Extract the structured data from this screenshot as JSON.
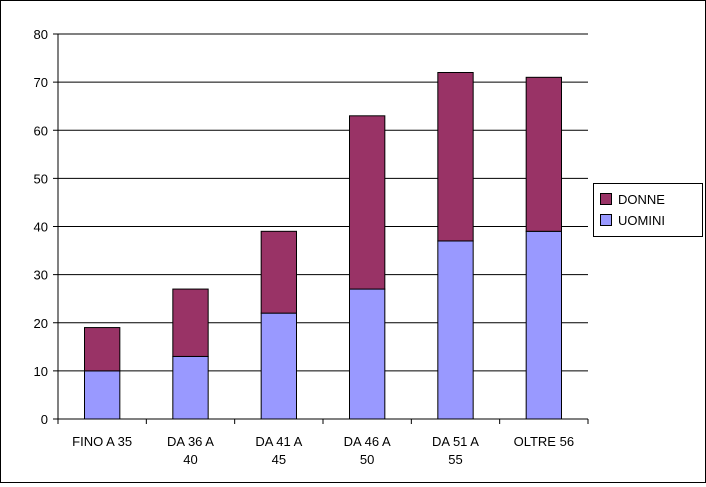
{
  "chart_data": {
    "type": "bar",
    "stacked": true,
    "categories": [
      [
        "FINO A 35"
      ],
      [
        "DA 36 A",
        "40"
      ],
      [
        "DA 41 A",
        "45"
      ],
      [
        "DA 46 A",
        "50"
      ],
      [
        "DA 51 A",
        "55"
      ],
      [
        "OLTRE 56"
      ]
    ],
    "series": [
      {
        "name": "UOMINI",
        "color": "#9999FF",
        "values": [
          10,
          13,
          22,
          27,
          37,
          39
        ]
      },
      {
        "name": "DONNE",
        "color": "#993366",
        "values": [
          9,
          14,
          17,
          36,
          35,
          32
        ]
      }
    ],
    "ylim": [
      0,
      80
    ],
    "yticks": [
      "0",
      "10",
      "20",
      "30",
      "40",
      "50",
      "60",
      "70",
      "80"
    ],
    "grid": true,
    "legend_position": "right",
    "legend_order": [
      "DONNE",
      "UOMINI"
    ]
  }
}
